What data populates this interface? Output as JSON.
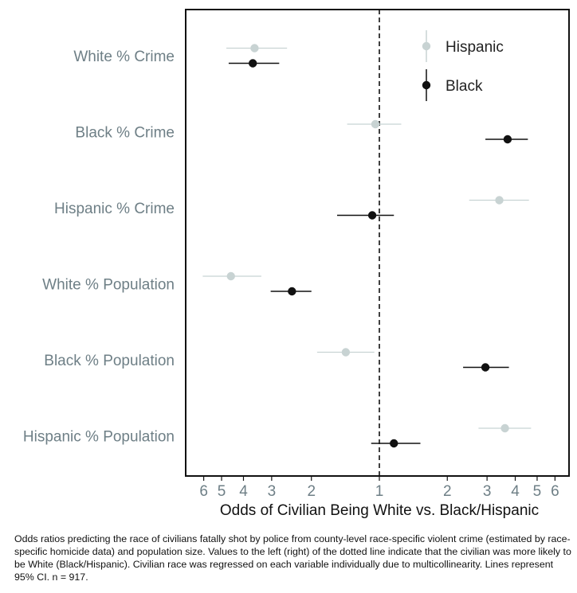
{
  "chart_data": {
    "type": "scatter",
    "xlabel": "Odds of Civilian Being White vs. Black/Hispanic",
    "ylabel": "",
    "x_scale": "log (reciprocal to the left of 1)",
    "xlim_left_max": 6.5,
    "xlim_right_max": 6.5,
    "xticks": [
      {
        "label": "6",
        "odds": 0.16667
      },
      {
        "label": "5",
        "odds": 0.2
      },
      {
        "label": "4",
        "odds": 0.25
      },
      {
        "label": "3",
        "odds": 0.33333
      },
      {
        "label": "2",
        "odds": 0.5
      },
      {
        "label": "1",
        "odds": 1
      },
      {
        "label": "2",
        "odds": 2
      },
      {
        "label": "3",
        "odds": 3
      },
      {
        "label": "4",
        "odds": 4
      },
      {
        "label": "5",
        "odds": 5
      },
      {
        "label": "6",
        "odds": 6
      }
    ],
    "reference_line": {
      "odds": 1,
      "style": "dashed"
    },
    "categories": [
      "White % Crime",
      "Black % Crime",
      "Hispanic % Crime",
      "White % Population",
      "Black % Population",
      "Hispanic % Population"
    ],
    "legend": {
      "placement": "top-right"
    },
    "series": [
      {
        "name": "Hispanic",
        "color": "#c8d3d3",
        "points": [
          {
            "category": "White % Crime",
            "or": 0.28,
            "lo": 0.21,
            "hi": 0.39
          },
          {
            "category": "Black % Crime",
            "or": 0.96,
            "lo": 0.72,
            "hi": 1.25
          },
          {
            "category": "Hispanic % Crime",
            "or": 3.4,
            "lo": 2.5,
            "hi": 4.6
          },
          {
            "category": "White % Population",
            "or": 0.22,
            "lo": 0.165,
            "hi": 0.3
          },
          {
            "category": "Black % Population",
            "or": 0.71,
            "lo": 0.53,
            "hi": 0.95
          },
          {
            "category": "Hispanic % Population",
            "or": 3.6,
            "lo": 2.75,
            "hi": 4.7
          }
        ]
      },
      {
        "name": "Black",
        "color": "#111111",
        "points": [
          {
            "category": "White % Crime",
            "or": 0.275,
            "lo": 0.215,
            "hi": 0.36
          },
          {
            "category": "Black % Crime",
            "or": 3.7,
            "lo": 2.95,
            "hi": 4.55
          },
          {
            "category": "Hispanic % Crime",
            "or": 0.93,
            "lo": 0.65,
            "hi": 1.16
          },
          {
            "category": "White % Population",
            "or": 0.41,
            "lo": 0.33,
            "hi": 0.5
          },
          {
            "category": "Black % Population",
            "or": 2.95,
            "lo": 2.35,
            "hi": 3.75
          },
          {
            "category": "Hispanic % Population",
            "or": 1.16,
            "lo": 0.92,
            "hi": 1.52
          }
        ]
      }
    ]
  },
  "caption": "Odds ratios predicting the race of civilians fatally shot by police from county-level race-specific violent crime (estimated by race-specific homicide data) and population size. Values to the left (right) of the dotted line indicate that the civilian was more likely to be White (Black/Hispanic). Civilian race was regressed on each variable individually due to multicollinearity. Lines represent 95% CI. n = 917."
}
